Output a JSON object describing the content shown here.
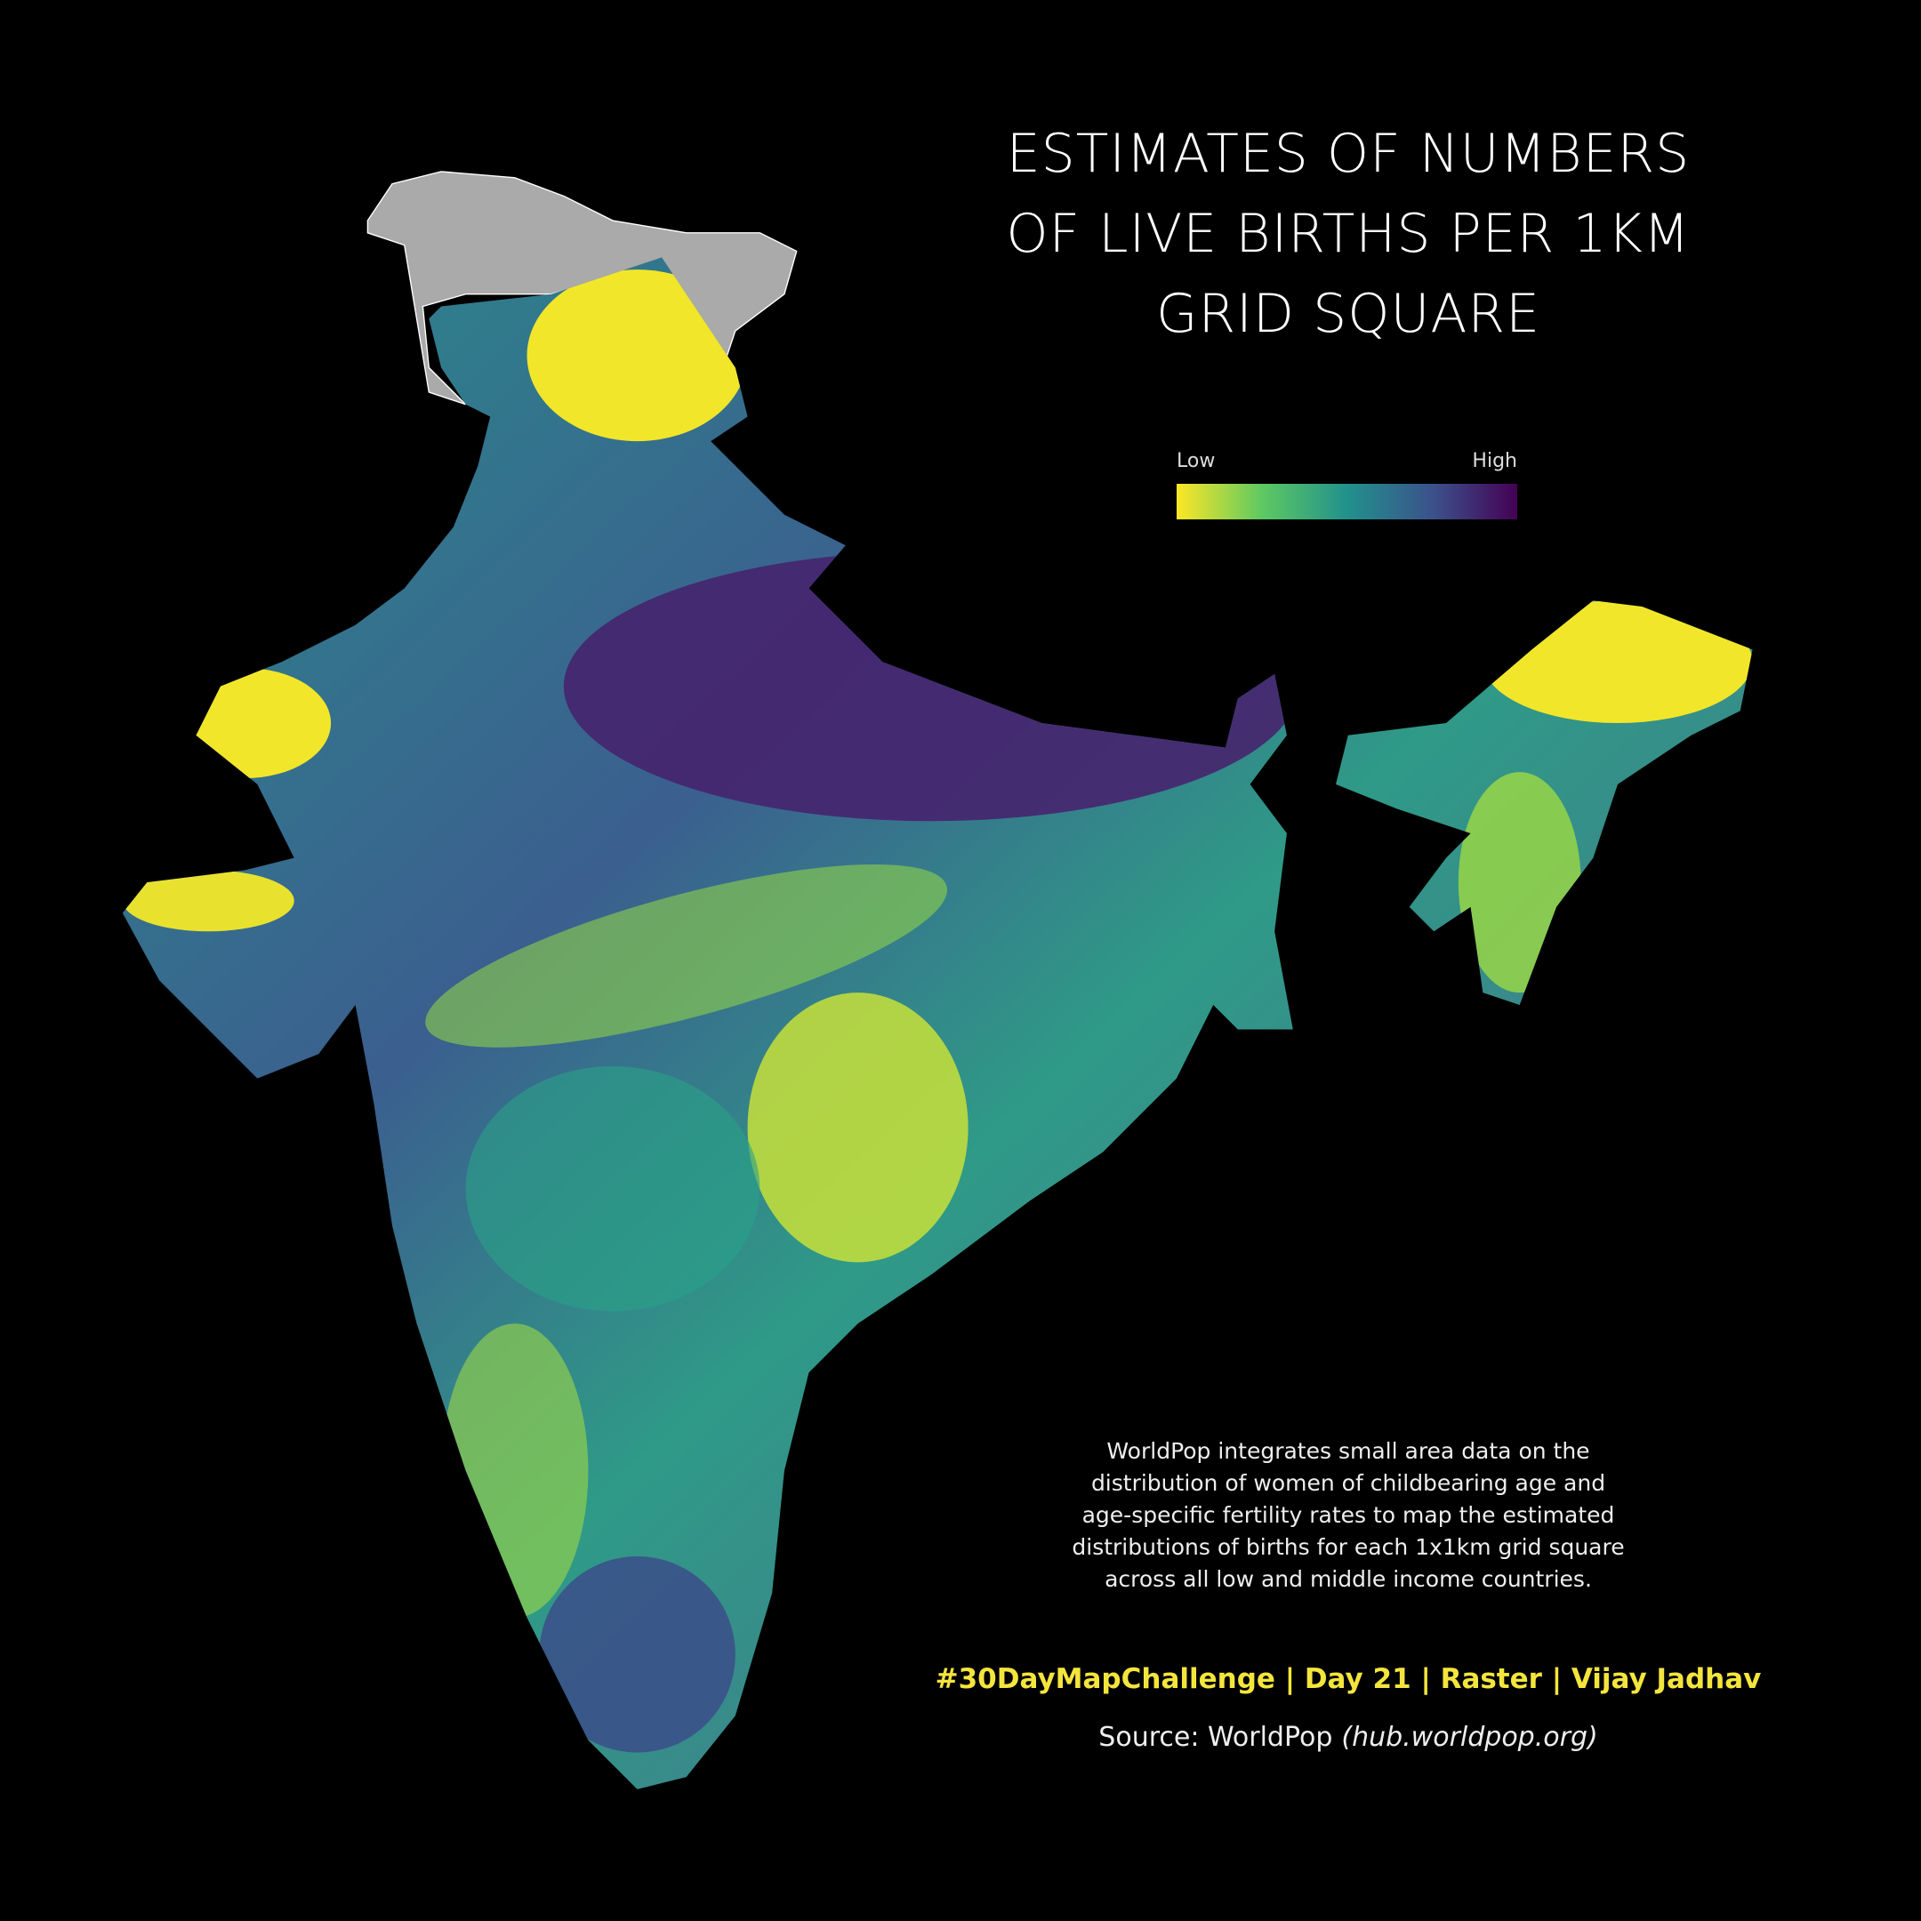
{
  "title": {
    "lines": [
      "ESTIMATES OF NUMBERS",
      "OF LIVE BIRTHS PER 1KM",
      "GRID SQUARE"
    ]
  },
  "legend": {
    "low": "Low",
    "high": "High"
  },
  "description": {
    "lines": [
      "WorldPop integrates small area data on the",
      "distribution of women of childbearing age and",
      "age-specific fertility rates to map the estimated",
      "distributions of births for each 1x1km grid square",
      "across all low and middle income countries."
    ]
  },
  "credit": "#30DayMapChallenge | Day 21 | Raster | Vijay Jadhav",
  "source": {
    "text": "Source: WorldPop",
    "link": "(hub.worldpop.org)"
  }
}
